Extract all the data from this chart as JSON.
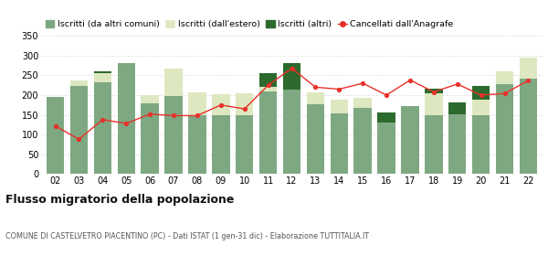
{
  "years": [
    "02",
    "03",
    "04",
    "05",
    "06",
    "07",
    "08",
    "09",
    "10",
    "11",
    "12",
    "13",
    "14",
    "15",
    "16",
    "17",
    "18",
    "19",
    "20",
    "21",
    "22"
  ],
  "iscritti_comuni": [
    195,
    222,
    232,
    282,
    180,
    198,
    150,
    150,
    148,
    210,
    215,
    178,
    153,
    168,
    130,
    172,
    150,
    152,
    150,
    228,
    242
  ],
  "iscritti_estero": [
    0,
    14,
    24,
    0,
    20,
    68,
    58,
    52,
    56,
    10,
    0,
    28,
    35,
    24,
    0,
    0,
    55,
    0,
    38,
    33,
    52
  ],
  "iscritti_altri": [
    0,
    0,
    4,
    0,
    0,
    0,
    0,
    0,
    0,
    35,
    65,
    0,
    0,
    0,
    25,
    0,
    12,
    30,
    35,
    0,
    0
  ],
  "cancellati": [
    122,
    88,
    138,
    128,
    152,
    148,
    148,
    175,
    165,
    225,
    268,
    220,
    215,
    230,
    200,
    238,
    208,
    228,
    200,
    204,
    237
  ],
  "color_comuni": "#7ea882",
  "color_estero": "#dde8c0",
  "color_altri": "#2d6a2d",
  "color_cancellati": "#e8312a",
  "ylim_min": 0,
  "ylim_max": 350,
  "yticks": [
    0,
    50,
    100,
    150,
    200,
    250,
    300,
    350
  ],
  "title": "Flusso migratorio della popolazione",
  "subtitle": "COMUNE DI CASTELVETRO PIACENTINO (PC) - Dati ISTAT (1 gen-31 dic) - Elaborazione TUTTITALIA.IT",
  "legend_labels": [
    "Iscritti (da altri comuni)",
    "Iscritti (dall'estero)",
    "Iscritti (altri)",
    "Cancellati dall'Anagrafe"
  ],
  "bg_color": "#ffffff",
  "grid_color": "#cccccc",
  "bar_width": 0.75
}
